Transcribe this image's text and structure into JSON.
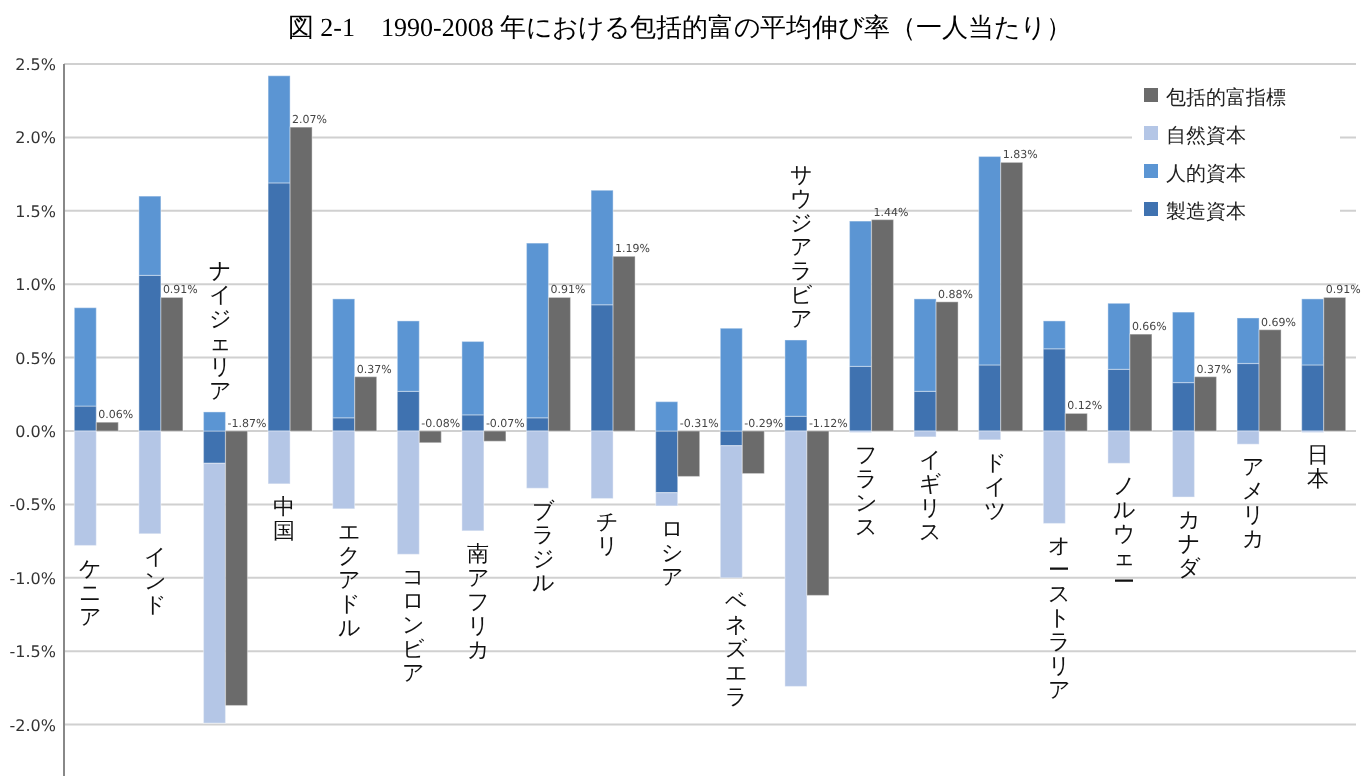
{
  "chart_data": [
    {
      "type": "bar",
      "title": "図 2-1　1990-2008 年における包括的富の平均伸び率（一人当たり）",
      "categories": [
        "ケニア",
        "インド",
        "ナイジェリア",
        "中国",
        "エクアドル",
        "コロンビア",
        "南アフリカ",
        "ブラジル",
        "チリ",
        "ロシア",
        "ベネズエラ",
        "サウジアラビア",
        "フランス",
        "イギリス",
        "ドイツ",
        "オーストラリア",
        "ノルウェー",
        "カナダ",
        "アメリカ",
        "日本"
      ],
      "stacked": true,
      "series": [
        {
          "name": "製造資本",
          "color": "#3f72b0",
          "values": [
            0.17,
            1.06,
            -0.22,
            1.69,
            0.09,
            0.27,
            0.11,
            0.09,
            0.86,
            -0.42,
            -0.1,
            0.1,
            0.44,
            0.27,
            0.45,
            0.56,
            0.42,
            0.33,
            0.46,
            0.45
          ]
        },
        {
          "name": "人的資本",
          "color": "#5b95d3",
          "values": [
            0.67,
            0.54,
            0.13,
            0.73,
            0.81,
            0.48,
            0.5,
            1.19,
            0.78,
            0.2,
            0.7,
            0.52,
            0.99,
            0.63,
            1.42,
            0.19,
            0.45,
            0.48,
            0.31,
            0.45
          ]
        },
        {
          "name": "自然資本",
          "color": "#b4c6e6",
          "values": [
            -0.78,
            -0.7,
            -1.77,
            -0.36,
            -0.53,
            -0.84,
            -0.68,
            -0.39,
            -0.46,
            -0.09,
            -0.9,
            -1.74,
            -0.01,
            -0.04,
            -0.06,
            -0.63,
            -0.22,
            -0.45,
            -0.09,
            -0.01
          ]
        }
      ],
      "ylim": [
        -2.35,
        2.5
      ],
      "yticks": [
        {
          "value": -2.0,
          "label": "-2.0%"
        },
        {
          "value": -1.5,
          "label": "-1.5%"
        },
        {
          "value": -1.0,
          "label": "-1.0%"
        },
        {
          "value": -0.5,
          "label": "-0.5%"
        },
        {
          "value": 0.0,
          "label": "0.0%"
        },
        {
          "value": 0.5,
          "label": "0.5%"
        },
        {
          "value": 1.0,
          "label": "1.0%"
        },
        {
          "value": 1.5,
          "label": "1.5%"
        },
        {
          "value": 2.0,
          "label": "2.0%"
        },
        {
          "value": 2.5,
          "label": "2.5%"
        }
      ],
      "grid": "y",
      "legend": "top right"
    },
    {
      "type": "bar",
      "categories": [
        null,
        null,
        null,
        null,
        null,
        null,
        null,
        null,
        null,
        null,
        null,
        null,
        null,
        null,
        null,
        null,
        null,
        null,
        null,
        null
      ],
      "series": [
        {
          "name": "包括的富指標",
          "color": "#6b6b6b",
          "values": [
            0.06,
            0.91,
            -1.87,
            2.07,
            0.37,
            -0.08,
            -0.07,
            0.91,
            1.19,
            -0.31,
            -0.29,
            -1.12,
            1.44,
            0.88,
            1.83,
            0.12,
            0.66,
            0.37,
            0.69,
            0.91
          ],
          "value_labels": [
            "0.06%",
            "0.91%",
            "-1.87%",
            "2.07%",
            "0.37%",
            "-0.08%",
            "-0.07%",
            "0.91%",
            "1.19%",
            "-0.31%",
            "-0.29%",
            "-1.12%",
            "1.44%",
            "0.88%",
            "1.83%",
            "0.12%",
            "0.66%",
            "0.37%",
            "0.69%",
            "0.91%"
          ]
        }
      ],
      "ylim": [
        -2.35,
        2.5
      ],
      "tick_labels": false,
      "legend": "top right"
    }
  ]
}
